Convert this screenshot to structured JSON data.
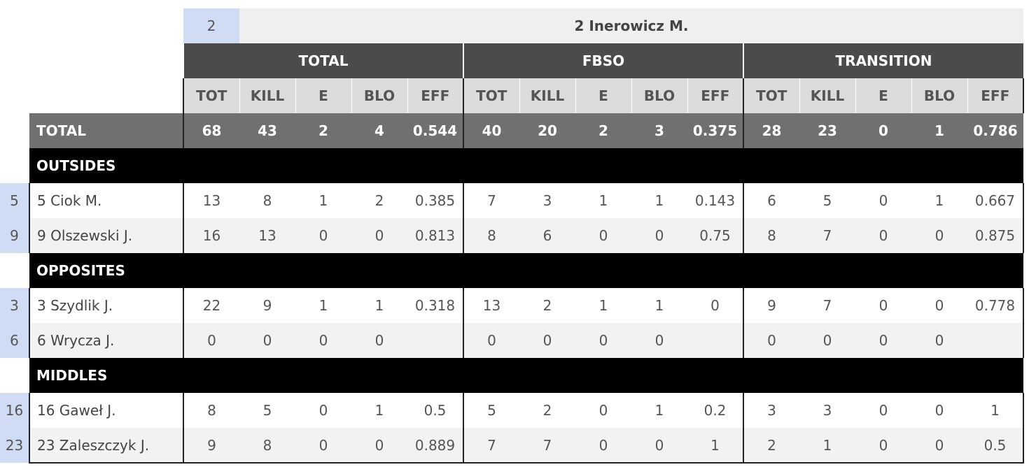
{
  "header": {
    "setter_number": "2",
    "setter_name": "2 Inerowicz M."
  },
  "groups": [
    "TOTAL",
    "FBSO",
    "TRANSITION"
  ],
  "columns": [
    "TOT",
    "KILL",
    "E",
    "BLO",
    "EFF"
  ],
  "total_row": {
    "label": "TOTAL",
    "values": [
      "68",
      "43",
      "2",
      "4",
      "0.544",
      "40",
      "20",
      "2",
      "3",
      "0.375",
      "28",
      "23",
      "0",
      "1",
      "0.786"
    ]
  },
  "categories": [
    {
      "name": "OUTSIDES",
      "players": [
        {
          "num": "5",
          "name": "5 Ciok M.",
          "values": [
            "13",
            "8",
            "1",
            "2",
            "0.385",
            "7",
            "3",
            "1",
            "1",
            "0.143",
            "6",
            "5",
            "0",
            "1",
            "0.667"
          ]
        },
        {
          "num": "9",
          "name": "9 Olszewski J.",
          "values": [
            "16",
            "13",
            "0",
            "0",
            "0.813",
            "8",
            "6",
            "0",
            "0",
            "0.75",
            "8",
            "7",
            "0",
            "0",
            "0.875"
          ]
        }
      ]
    },
    {
      "name": "OPPOSITES",
      "players": [
        {
          "num": "3",
          "name": "3 Szydlik J.",
          "values": [
            "22",
            "9",
            "1",
            "1",
            "0.318",
            "13",
            "2",
            "1",
            "1",
            "0",
            "9",
            "7",
            "0",
            "0",
            "0.778"
          ]
        },
        {
          "num": "6",
          "name": "6 Wrycza J.",
          "values": [
            "0",
            "0",
            "0",
            "0",
            "",
            "0",
            "0",
            "0",
            "0",
            "",
            "0",
            "0",
            "0",
            "0",
            ""
          ]
        }
      ]
    },
    {
      "name": "MIDDLES",
      "players": [
        {
          "num": "16",
          "name": "16 Gaweł J.",
          "values": [
            "8",
            "5",
            "0",
            "1",
            "0.5",
            "5",
            "2",
            "0",
            "1",
            "0.2",
            "3",
            "3",
            "0",
            "0",
            "1"
          ]
        },
        {
          "num": "23",
          "name": "23 Zaleszczyk J.",
          "values": [
            "9",
            "8",
            "0",
            "0",
            "0.889",
            "7",
            "7",
            "0",
            "0",
            "1",
            "2",
            "1",
            "0",
            "0",
            "0.5"
          ]
        }
      ]
    }
  ]
}
